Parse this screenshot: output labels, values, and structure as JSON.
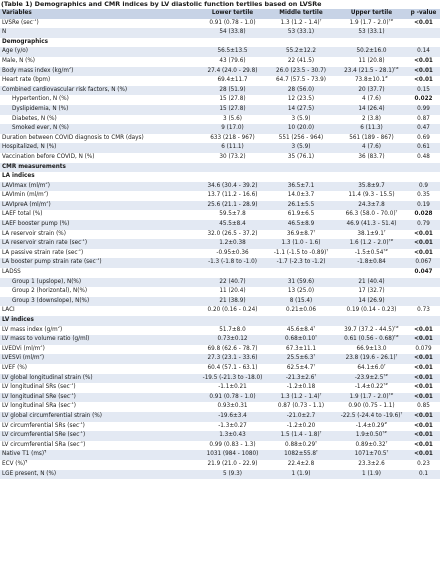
{
  "caption": "(Table 1) Demographics and CMR indices by LV diastolic function tertiles based on LVSRe",
  "header": {
    "variables": "Variables",
    "lower": "Lower tertile",
    "middle": "Middle tertile",
    "upper": "Upper tertile",
    "p": "p -value"
  },
  "rows": [
    {
      "type": "data",
      "label": "LVSRe (sec",
      "lsup": "-1",
      "lend": ")",
      "lower": "0.91 (0.78 - 1.0)",
      "middle": "1.3 (1.2 - 1.4)",
      "msup": "†",
      "upper": "1.9 (1.7 - 2.0)",
      "usup": "†#",
      "p": "<0.01",
      "pb": true
    },
    {
      "type": "data",
      "label": "N",
      "lower": "54 (33.8)",
      "middle": "53 (33.1)",
      "upper": "53 (33.1)",
      "p": ""
    },
    {
      "type": "section",
      "label": "Demographics"
    },
    {
      "type": "data",
      "label": "Age (y/o)",
      "lower": "56.5±13.5",
      "middle": "55.2±12.2",
      "upper": "50.2±16.0",
      "p": "0.14"
    },
    {
      "type": "data",
      "label": "Male, N (%)",
      "lower": "43 (79.6)",
      "middle": "22 (41.5)",
      "upper": "11 (20.8)",
      "p": "<0.01",
      "pb": true
    },
    {
      "type": "data",
      "label": "Body mass index (kg/m",
      "lsup": "2",
      "lend": ")",
      "lower": "27.4 (24.0 - 29.8)",
      "middle": "26.0 (23.5 - 30.7)",
      "upper": "23.4 (21.5 - 28.1)",
      "usup": "†#",
      "p": "<0.01",
      "pb": true
    },
    {
      "type": "data",
      "label": "Heart rate (bpm)",
      "lower": "69.4±11.7",
      "middle": "64.7 (57.5 - 73.9)",
      "upper": "73.8±10.1",
      "usup": "#",
      "p": "<0.01",
      "pb": true
    },
    {
      "type": "data",
      "label": "Combined cardiovascular risk factors, N (%)",
      "lower": "28 (51.9)",
      "middle": "28 (56.0)",
      "upper": "20 (37.7)",
      "p": "0.15"
    },
    {
      "type": "data",
      "label": "Hypertention, N (%)",
      "ind": true,
      "lower": "15 (27.8)",
      "middle": "12 (23.5)",
      "upper": "4 (7.6)",
      "p": "0.022",
      "pb": true
    },
    {
      "type": "data",
      "label": "Dyslipidemia, N (%)",
      "ind": true,
      "lower": "15 (27.8)",
      "middle": "14 (27.5)",
      "upper": "14 (26.4)",
      "p": "0.99"
    },
    {
      "type": "data",
      "label": "Diabetes, N (%)",
      "ind": true,
      "lower": "3 (5.6)",
      "middle": "3 (5.9)",
      "upper": "2 (3.8)",
      "p": "0.87"
    },
    {
      "type": "data",
      "label": "Smoked ever, N (%)",
      "ind": true,
      "lower": "9 (17.0)",
      "middle": "10 (20.0)",
      "upper": "6 (11.3)",
      "p": "0.47"
    },
    {
      "type": "data",
      "label": "Duration between COVID diagnosis to CMR (days)",
      "lower": "633 (218 - 967)",
      "middle": "551 (256 - 964)",
      "upper": "561 (189 - 867)",
      "p": "0.69"
    },
    {
      "type": "data",
      "label": "Hospitalized, N (%)",
      "lower": "6 (11.1)",
      "middle": "3 (5.9)",
      "upper": "4 (7.6)",
      "p": "0.61"
    },
    {
      "type": "data",
      "label": "Vaccination before COVID, N (%)",
      "lower": "30 (73.2)",
      "middle": "35 (76.1)",
      "upper": "36 (83.7)",
      "p": "0.48"
    },
    {
      "type": "section",
      "label": "CMR measurements"
    },
    {
      "type": "section",
      "label": "LA indices"
    },
    {
      "type": "data",
      "label": "LAVImax (ml/m",
      "lsup": "2",
      "lend": ")",
      "lower": "34.6 (30.4 - 39.2)",
      "middle": "36.5±7.1",
      "upper": "35.8±9.7",
      "p": "0.9"
    },
    {
      "type": "data",
      "label": "LAVImin (ml/m",
      "lsup": "2",
      "lend": ")",
      "lower": "13.7 (11.2 - 16.6)",
      "middle": "14.0±3.7",
      "upper": "11.4 (9.3 - 15.5)",
      "p": "0.35"
    },
    {
      "type": "data",
      "label": "LAVIpreA (ml/m",
      "lsup": "2",
      "lend": ")",
      "lower": "25.6 (21.1 - 28.9)",
      "middle": "26.1±5.5",
      "upper": "24.3±7.8",
      "p": "0.19"
    },
    {
      "type": "data",
      "label": "LAEF total (%)",
      "lower": "59.5±7.8",
      "middle": "61.9±6.5",
      "upper": "66.3 (58.0 - 70.0)",
      "usup": "†",
      "p": "0.028",
      "pb": true
    },
    {
      "type": "data",
      "label": "LAEF booster pump (%)",
      "lower": "45.5±8.4",
      "middle": "46.5±8.9",
      "upper": "46.9 (41.3 - 51.4)",
      "p": "0.79"
    },
    {
      "type": "data",
      "label": "LA reservoir strain (%)",
      "lower": "32.0 (26.5 - 37.2)",
      "middle": "36.9±8.7",
      "msup": "†",
      "upper": "38.1±9.1",
      "usup": "†",
      "p": "<0.01",
      "pb": true
    },
    {
      "type": "data",
      "label": "LA reservoir strain rate (sec",
      "lsup": "-1",
      "lend": ")",
      "lower": "1.2±0.38",
      "middle": "1.3 (1.0 - 1.6)",
      "upper": "1.6 (1.2 - 2.0)",
      "usup": "†#",
      "p": "<0.01",
      "pb": true
    },
    {
      "type": "data",
      "label": "LA passive strain rate (sec",
      "lsup": "-1",
      "lend": ")",
      "lower": "-0.95±0.36",
      "middle": "-1.1 (-1.5 to -0.89)",
      "msup": "†",
      "upper": "-1.5±0.54",
      "usup": "†#",
      "p": "<0.01",
      "pb": true
    },
    {
      "type": "data",
      "label": "LA booster pump strain rate (sec",
      "lsup": "-1",
      "lend": ")",
      "lower": "-1.3 (-1.8 to -1.0)",
      "middle": "-1.7 (-2.3 to -1.2)",
      "upper": "-1.8±0.84",
      "p": "0.067"
    },
    {
      "type": "data",
      "label": "LADSS",
      "lower": "",
      "middle": "",
      "upper": "",
      "p": "0.047",
      "pb": true
    },
    {
      "type": "data",
      "label": "Group 1 (upslope), N(%)",
      "ind": true,
      "lower": "22 (40.7)",
      "middle": "31 (59.6)",
      "upper": "21 (40.4)",
      "p": ""
    },
    {
      "type": "data",
      "label": "Group 2 (horizontal), N(%)",
      "ind": true,
      "lower": "11 (20.4)",
      "middle": "13 (25.0)",
      "upper": "17 (32.7)",
      "p": ""
    },
    {
      "type": "data",
      "label": "Group 3 (downslope), N(%)",
      "ind": true,
      "lower": "21 (38.9)",
      "middle": "8 (15.4)",
      "upper": "14 (26.9)",
      "p": ""
    },
    {
      "type": "data",
      "label": "LACI",
      "lower": "0.20 (0.16 - 0.24)",
      "middle": "0.21±0.06",
      "upper": "0.19 (0.14 - 0.23)",
      "p": "0.73"
    },
    {
      "type": "section",
      "label": "LV indices"
    },
    {
      "type": "data",
      "label": "LV mass index (g/m",
      "lsup": "2",
      "lend": ")",
      "lower": "51.7±8.0",
      "middle": "45.6±8.4",
      "msup": "†",
      "upper": "39.7 (37.2 - 44.5)",
      "usup": "†#",
      "p": "<0.01",
      "pb": true
    },
    {
      "type": "data",
      "label": "LV mass to volume ratio (g/ml)",
      "lower": "0.73±0.12",
      "middle": "0.68±0.10",
      "msup": "†",
      "upper": "0.61 (0.56 - 0.68)",
      "usup": "†#",
      "p": "<0.01",
      "pb": true
    },
    {
      "type": "data",
      "label": "LVEDVi (ml/m",
      "lsup": "2",
      "lend": ")",
      "lower": "69.8 (62.6 - 78.7)",
      "middle": "67.3±11.1",
      "upper": "66.9±13.0",
      "p": "0.079"
    },
    {
      "type": "data",
      "label": "LVESVi (ml/m",
      "lsup": "2",
      "lend": ")",
      "lower": "27.3 (23.1 - 33.6)",
      "middle": "25.5±6.3",
      "msup": "†",
      "upper": "23.8 (19.6 - 26.1)",
      "usup": "†",
      "p": "<0.01",
      "pb": true
    },
    {
      "type": "data",
      "label": "LVEF (%)",
      "lower": "60.4 (57.1 - 63.1)",
      "middle": "62.5±4.7",
      "msup": "†",
      "upper": "64.1±6.0",
      "usup": "†",
      "p": "<0.01",
      "pb": true
    },
    {
      "type": "data",
      "label": "LV global longitudinal strain (%)",
      "lower": "-19.5 (-21.3 to -18.0)",
      "middle": "-21.3±2.6",
      "msup": "†",
      "upper": "-23.9±2.5",
      "usup": "†#",
      "p": "<0.01",
      "pb": true
    },
    {
      "type": "data",
      "label": "LV longitudinal SRs (sec",
      "lsup": "-1",
      "lend": ")",
      "lower": "-1.1±0.21",
      "middle": "-1.2±0.18",
      "upper": "-1.4±0.22",
      "usup": "†#",
      "p": "<0.01",
      "pb": true
    },
    {
      "type": "data",
      "label": "LV longitudinal SRe (sec",
      "lsup": "-1",
      "lend": ")",
      "lower": "0.91 (0.78 - 1.0)",
      "middle": "1.3 (1.2 - 1.4)",
      "msup": "†",
      "upper": "1.9 (1.7 - 2.0)",
      "usup": "†#",
      "p": "<0.01",
      "pb": true
    },
    {
      "type": "data",
      "label": "LV longitudinal SRa (sec",
      "lsup": "-1",
      "lend": ")",
      "lower": "0.93±0.31",
      "middle": "0.87 (0.73 - 1.1)",
      "upper": "0.90 (0.75 - 1.1)",
      "p": "0.85"
    },
    {
      "type": "data",
      "label": "LV global circumferential strain (%)",
      "lower": "-19.6±3.4",
      "middle": "-21.0±2.7",
      "upper": "-22.5 (-24.4 to -19.6)",
      "usup": "†",
      "p": "<0.01",
      "pb": true
    },
    {
      "type": "data",
      "label": "LV circumferential SRs (sec",
      "lsup": "-1",
      "lend": ")",
      "lower": "-1.3±0.27",
      "middle": "-1.2±0.20",
      "upper": "-1.4±0.29",
      "usup": "#",
      "p": "<0.01",
      "pb": true
    },
    {
      "type": "data",
      "label": "LV circumferential SRe (sec",
      "lsup": "-1",
      "lend": ")",
      "lower": "1.3±0.43",
      "middle": "1.5 (1.4 - 1.8)",
      "msup": "†",
      "upper": "1.9±0.50",
      "usup": "†#",
      "p": "<0.01",
      "pb": true
    },
    {
      "type": "data",
      "label": "LV circumferential SRa (sec",
      "lsup": "-1",
      "lend": ")",
      "lower": "0.99 (0.83 - 1.3)",
      "middle": "0.88±0.29",
      "msup": "†",
      "upper": "0.89±0.32",
      "usup": "†",
      "p": "<0.01",
      "pb": true
    },
    {
      "type": "data",
      "label": "Native T1 (ms)",
      "lsup": "¶",
      "lend": "",
      "lower": "1031 (984 - 1080)",
      "middle": "1082±55.8",
      "msup": "†",
      "upper": "1071±70.5",
      "usup": "†",
      "p": "<0.01",
      "pb": true
    },
    {
      "type": "data",
      "label": "ECV (%)",
      "lsup": "¶",
      "lend": "",
      "lower": "21.9 (21.0 - 22.9)",
      "middle": "22.4±2.8",
      "upper": "23.3±2.6",
      "p": "0.23"
    },
    {
      "type": "data",
      "label": "LGE present, N (%)",
      "lower": "5 (9.3)",
      "middle": "1 (1.9)",
      "upper": "1 (1.9)",
      "p": "0.1"
    }
  ]
}
